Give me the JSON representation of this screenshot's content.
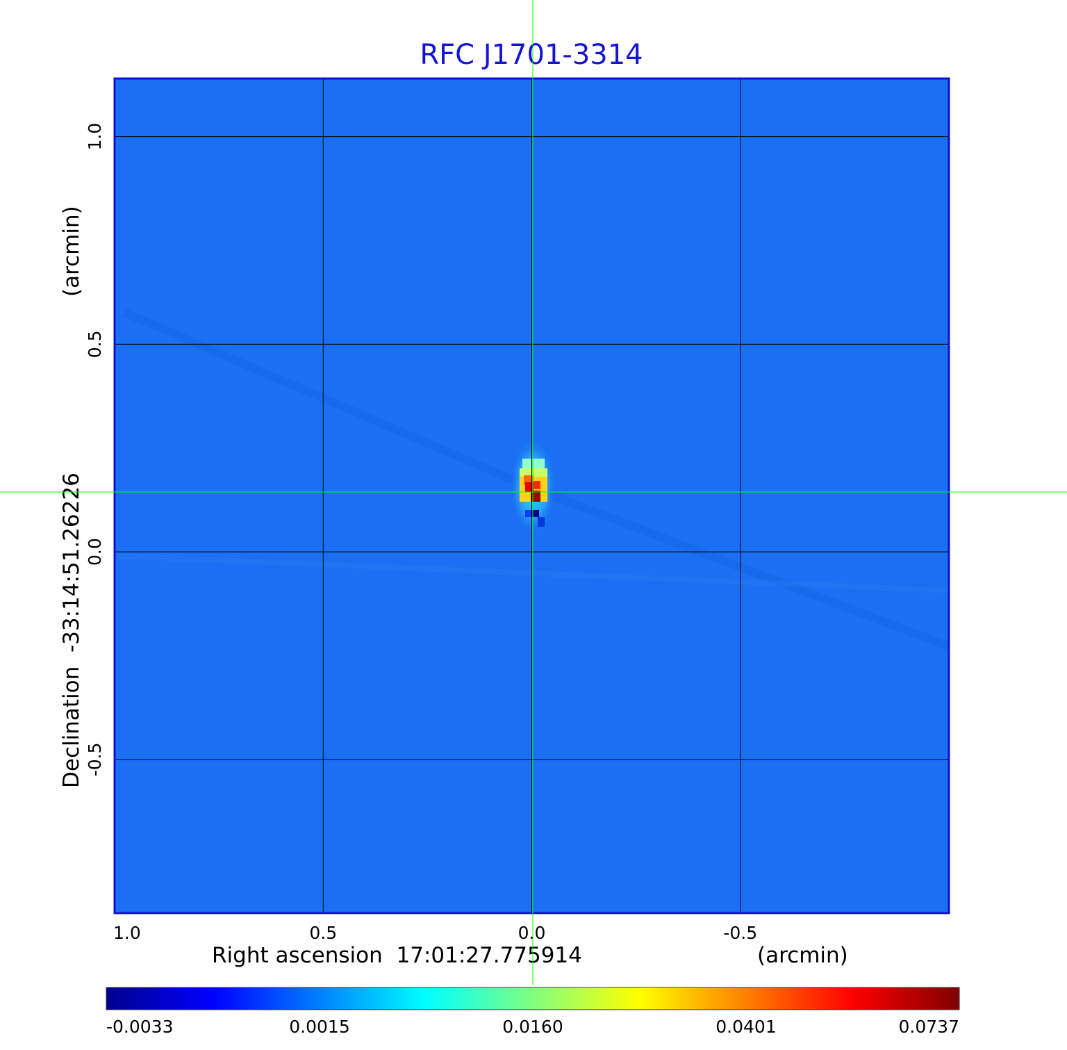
{
  "chart_data": {
    "type": "heatmap",
    "title": "RFC J1701-3314",
    "xlabel": "Right ascension  17:01:27.775914",
    "xunit": "(arcmin)",
    "ylabel": "Declination  -33:14:51.26226",
    "yunit": "(arcmin)",
    "xlim": [
      1.0,
      -1.0
    ],
    "ylim": [
      -0.87,
      1.14
    ],
    "xticks": [
      {
        "value": 1.0,
        "label": "1.0"
      },
      {
        "value": 0.5,
        "label": "0.5"
      },
      {
        "value": 0.0,
        "label": "0.0"
      },
      {
        "value": -0.5,
        "label": "-0.5"
      }
    ],
    "yticks": [
      {
        "value": 1.0,
        "label": "1.0"
      },
      {
        "value": 0.5,
        "label": "0.5"
      },
      {
        "value": 0.0,
        "label": "0.0"
      },
      {
        "value": -0.5,
        "label": "-0.5"
      }
    ],
    "grid": true,
    "colormap": "jet",
    "colorbar": {
      "labels": [
        "-0.0033",
        "0.0015",
        "0.0160",
        "0.0401",
        "0.0737"
      ],
      "colors": [
        "#00008f",
        "#0000ff",
        "#00ffff",
        "#ffff00",
        "#ff0000",
        "#800000"
      ]
    },
    "background_value": 0.0015,
    "source_peak": {
      "x": 0.0,
      "y": 0.15,
      "value": 0.0737
    },
    "crosshair": {
      "x": 0.0,
      "y": 0.15,
      "color": "#00ff00"
    },
    "colors": {
      "title": "#1414d2",
      "frame": "#1010d0",
      "grid": "#000000",
      "background_map": "#1a6ff2"
    }
  }
}
